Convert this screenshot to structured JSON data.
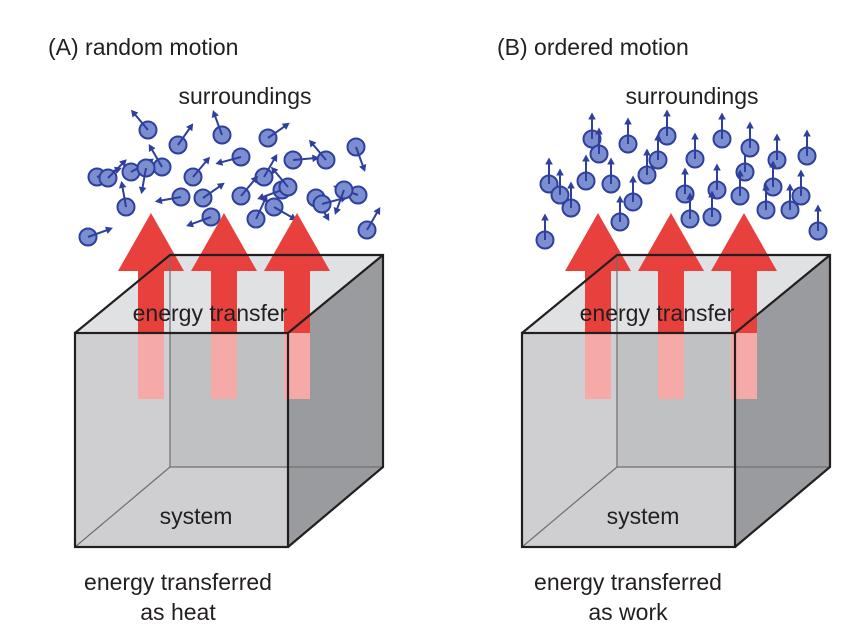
{
  "panels": [
    {
      "id": "A",
      "title": "(A) random motion",
      "surroundings_label": "surroundings",
      "transfer_label": "energy transfer",
      "system_label": "system",
      "caption_line1": "energy transferred",
      "caption_line2": "as heat",
      "motion": "random",
      "particle_count": 30,
      "arrow_count": 3
    },
    {
      "id": "B",
      "title": "(B) ordered motion",
      "surroundings_label": "surroundings",
      "transfer_label": "energy transfer",
      "system_label": "system",
      "caption_line1": "energy transferred",
      "caption_line2": "as work",
      "motion": "ordered",
      "particle_count": 30,
      "arrow_count": 3
    }
  ],
  "colors": {
    "particle_fill": "#7b8fd0",
    "particle_stroke": "#2e3f9e",
    "arrow_red": "#e8403c",
    "arrow_pink": "#f6aaa8",
    "cube_front": "#c4c5c7",
    "cube_top": "#e0e1e3",
    "cube_side": "#9a9b9e",
    "edge": "#231f20",
    "text": "#231f20"
  }
}
